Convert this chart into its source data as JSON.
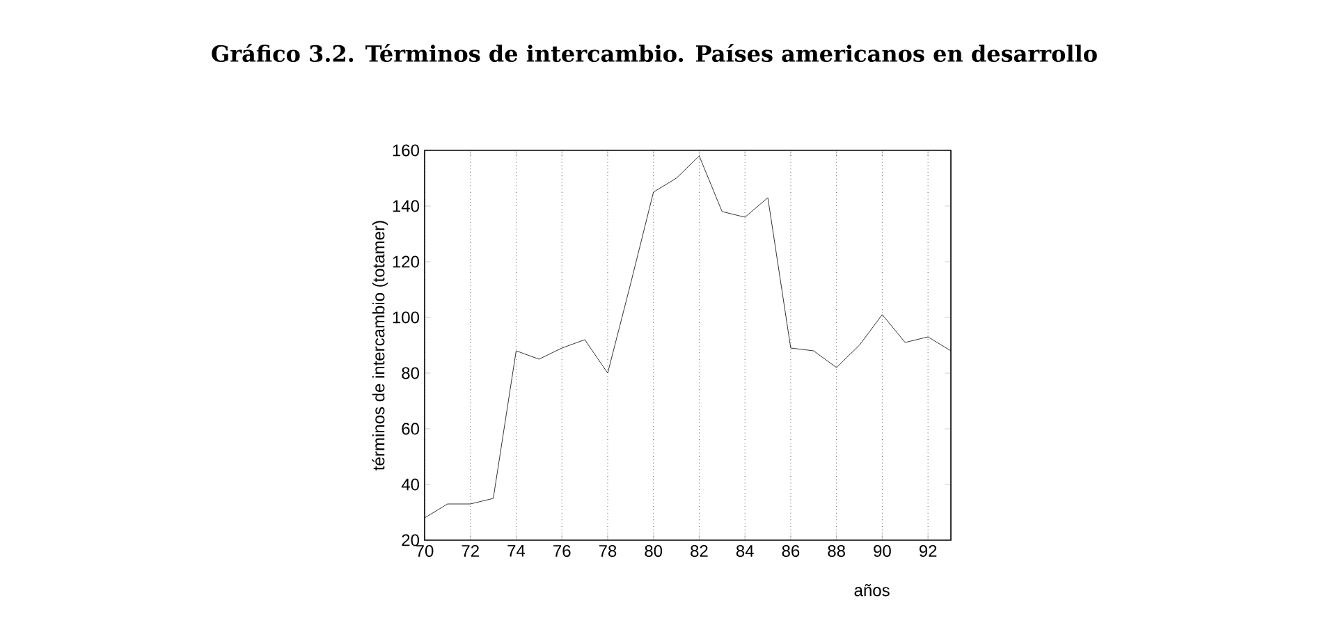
{
  "chart_data": {
    "type": "line",
    "title": "Gráfico 3.2. Términos de intercambio. Países americanos en desarrollo",
    "xlabel": "años",
    "ylabel": "términos de intercambio (totamer)",
    "x": [
      70,
      71,
      72,
      73,
      74,
      75,
      76,
      77,
      78,
      79,
      80,
      81,
      82,
      83,
      84,
      85,
      86,
      87,
      88,
      89,
      90,
      91,
      92,
      93
    ],
    "series": [
      {
        "color": "#000000",
        "values": [
          28,
          33,
          33,
          35,
          88,
          85,
          89,
          92,
          80,
          112,
          145,
          150,
          158,
          138,
          136,
          143,
          89,
          88,
          82,
          90,
          101,
          91,
          93,
          88
        ]
      }
    ],
    "xlim": [
      70,
      93
    ],
    "ylim": [
      20,
      160
    ],
    "xticks": [
      70,
      72,
      74,
      76,
      78,
      80,
      82,
      84,
      86,
      88,
      90,
      92
    ],
    "yticks": [
      20,
      40,
      60,
      80,
      100,
      120,
      140,
      160
    ],
    "grid": "x",
    "marker": "none",
    "line_style": "solid"
  }
}
